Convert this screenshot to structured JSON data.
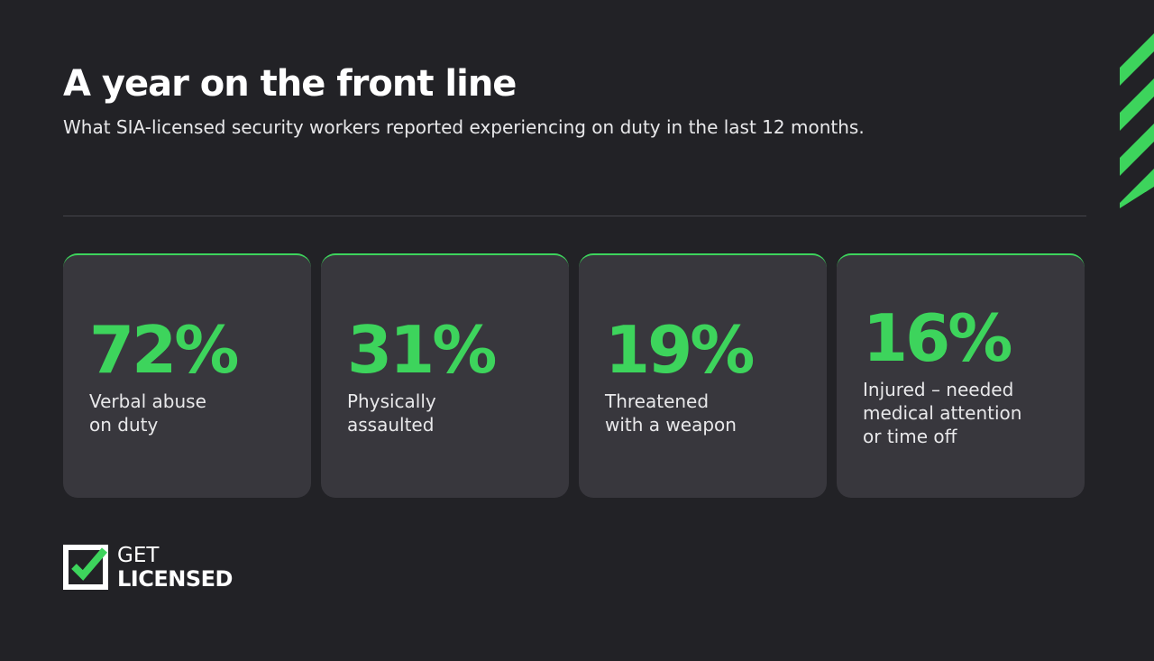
{
  "header": {
    "title": "A year on the front line",
    "subtitle": "What SIA-licensed security workers reported experiencing on duty in the last 12 months."
  },
  "cards": [
    {
      "value": "72%",
      "label": [
        "Verbal abuse",
        "on duty"
      ]
    },
    {
      "value": "31%",
      "label": [
        "Physically",
        "assaulted"
      ]
    },
    {
      "value": "19%",
      "label": [
        "Threatened",
        "with a weapon"
      ]
    },
    {
      "value": "16%",
      "label": [
        "Injured – needed",
        "medical attention",
        "or time off"
      ]
    }
  ],
  "logo": {
    "line1": "GET",
    "line2": "LICENSED"
  }
}
